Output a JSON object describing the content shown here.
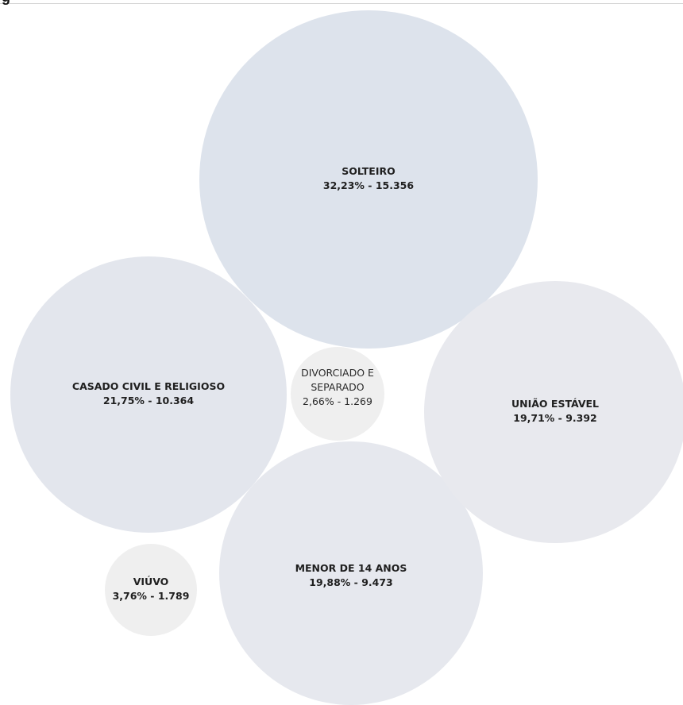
{
  "header": {
    "text": "g"
  },
  "chart_data": {
    "type": "bubble",
    "title": "",
    "bubbles": [
      {
        "category": "SOLTEIRO",
        "percent": "32,23%",
        "count": "15.356",
        "color": "#dde3ec"
      },
      {
        "category": "CASADO CIVIL E RELIGIOSO",
        "percent": "21,75%",
        "count": "10.364",
        "color": "#e3e6ed"
      },
      {
        "category": "MENOR DE 14 ANOS",
        "percent": "19,88%",
        "count": "9.473",
        "color": "#e6e8ee"
      },
      {
        "category": "UNIÃO ESTÁVEL",
        "percent": "19,71%",
        "count": "9.392",
        "color": "#e8e9ee"
      },
      {
        "category": "VIÚVO",
        "percent": "3,76%",
        "count": "1.789",
        "color": "#efefef"
      },
      {
        "category": "DIVORCIADO E SEPARADO",
        "percent": "2,66%",
        "count": "1.269",
        "color": "#efefef"
      }
    ]
  }
}
